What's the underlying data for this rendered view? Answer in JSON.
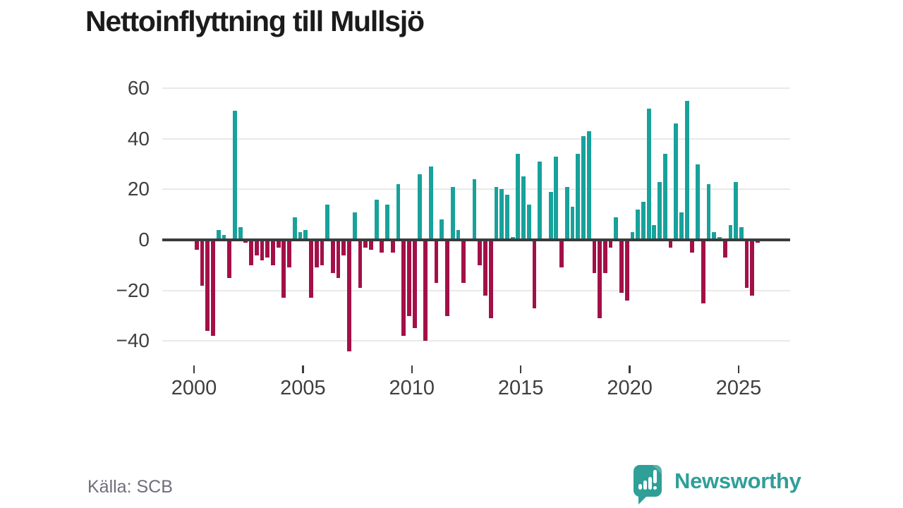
{
  "title": "Nettoinflyttning till Mullsjö",
  "source": {
    "label": "Källa: SCB"
  },
  "branding": {
    "name": "Newsworthy",
    "icon": "speech-bubble-bar-chart-icon",
    "color": "#2f9f98"
  },
  "colors": {
    "positive_bar": "#17a29b",
    "negative_bar": "#a31048",
    "axis_line": "#3b3b3b",
    "gridline": "#e9e9e9",
    "tick_text": "#3f3f3f",
    "title_text": "#1b1b1b",
    "source_text": "#6f6e79"
  },
  "chart_data": {
    "type": "bar",
    "title": "Nettoinflyttning till Mullsjö",
    "frequency": "quarterly",
    "start_period": "2000-Q1",
    "end_period": "2025-Q4",
    "x_tick_labels": [
      "2000",
      "2005",
      "2010",
      "2015",
      "2020",
      "2025"
    ],
    "y_ticks": [
      60,
      40,
      20,
      0,
      -20,
      -40
    ],
    "y_tick_labels": [
      "60",
      "40",
      "20",
      "0",
      "−20",
      "−40"
    ],
    "ylim": [
      -48,
      62
    ],
    "grid": "horizontal",
    "legend": "none",
    "values": [
      -4,
      -18,
      -36,
      -38,
      4,
      2,
      -15,
      51,
      5,
      -1,
      -10,
      -6,
      -8,
      -7,
      -10,
      -3,
      -23,
      -11,
      9,
      3,
      4,
      -23,
      -11,
      -10,
      14,
      -13,
      -15,
      -6,
      -44,
      11,
      -19,
      -3,
      -4,
      16,
      -5,
      14,
      -5,
      22,
      -38,
      -30,
      -35,
      26,
      -40,
      29,
      -17,
      8,
      -30,
      21,
      4,
      -17,
      0,
      24,
      -10,
      -22,
      -31,
      21,
      20,
      18,
      1,
      34,
      25,
      14,
      -27,
      31,
      0,
      19,
      33,
      -11,
      21,
      13,
      34,
      41,
      43,
      -13,
      -31,
      -13,
      -3,
      9,
      -21,
      -24,
      3,
      12,
      15,
      52,
      6,
      23,
      34,
      -3,
      46,
      11,
      55,
      -5,
      30,
      -25,
      22,
      3,
      1,
      -7,
      6,
      23,
      5,
      -19,
      -22,
      -1
    ]
  }
}
